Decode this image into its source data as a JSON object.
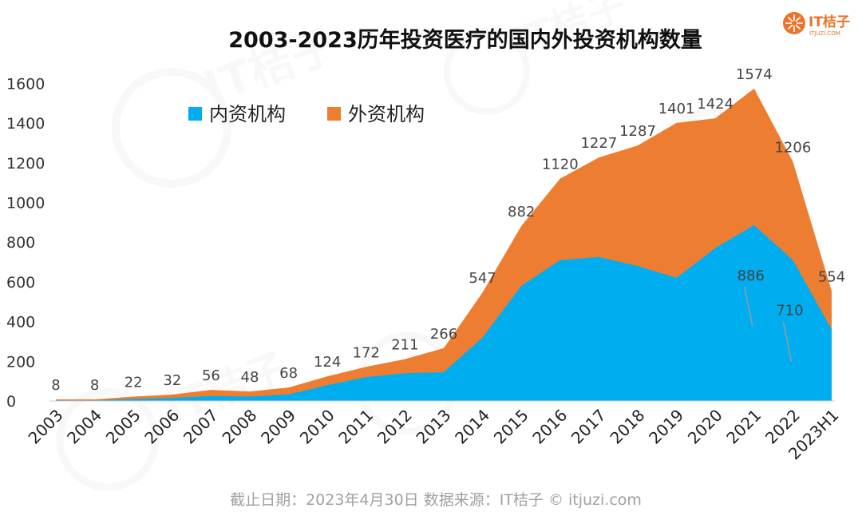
{
  "logo": {
    "text": "IT桔子",
    "sub": "ITJUZI.COM",
    "color": "#e8752b"
  },
  "footer": "截止日期：2023年4月30日    数据来源：IT桔子 © itjuzi.com",
  "chart_data": {
    "type": "area",
    "stacked": true,
    "title": "2003-2023历年投资医疗的国内外投资机构数量",
    "xlabel": "",
    "ylabel": "",
    "ylim": [
      0,
      1600
    ],
    "yticks": [
      0,
      200,
      400,
      600,
      800,
      1000,
      1200,
      1400,
      1600
    ],
    "grid": false,
    "legend_position": "top-left",
    "categories": [
      "2003",
      "2004",
      "2005",
      "2006",
      "2007",
      "2008",
      "2009",
      "2010",
      "2011",
      "2012",
      "2013",
      "2014",
      "2015",
      "2016",
      "2017",
      "2018",
      "2019",
      "2020",
      "2021",
      "2022",
      "2023H1"
    ],
    "series": [
      {
        "name": "内资机构",
        "color": "#00adef",
        "values": [
          3,
          3,
          10,
          15,
          25,
          22,
          33,
          80,
          120,
          140,
          145,
          320,
          580,
          710,
          725,
          680,
          620,
          770,
          886,
          710,
          360
        ]
      },
      {
        "name": "外资机构",
        "color": "#ed7d31",
        "values": [
          5,
          5,
          12,
          17,
          31,
          26,
          35,
          44,
          52,
          71,
          121,
          227,
          302,
          410,
          502,
          607,
          781,
          654,
          688,
          496,
          194
        ]
      }
    ],
    "total_labels": [
      "8",
      "8",
      "22",
      "32",
      "56",
      "48",
      "68",
      "124",
      "172",
      "211",
      "266",
      "547",
      "882",
      "1120",
      "1227",
      "1287",
      "1401",
      "1424",
      "1574",
      "1206",
      "554"
    ],
    "inner_labels": [
      {
        "category": "2021",
        "text": "886"
      },
      {
        "category": "2022",
        "text": "710"
      }
    ]
  }
}
